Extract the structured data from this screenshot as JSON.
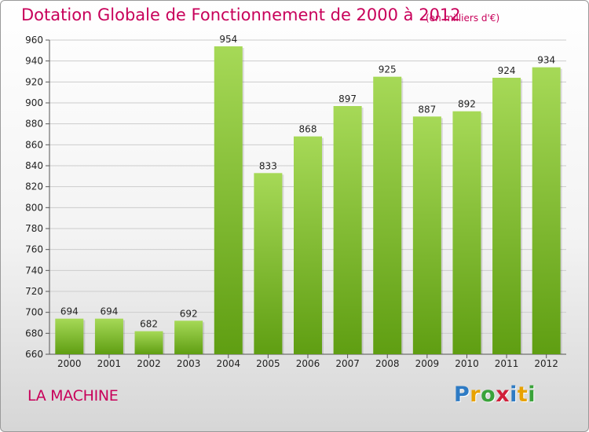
{
  "header": {
    "title": "Dotation Globale de Fonctionnement de 2000 à 2012",
    "unit": "(en milliers d'€)"
  },
  "footer": {
    "commune": "LA MACHINE",
    "logo_letters": [
      "P",
      "r",
      "o",
      "x",
      "i",
      "t",
      "i"
    ],
    "logo_colors": [
      "#2e7bc4",
      "#e8a200",
      "#3aa33a",
      "#d11f3a",
      "#2e7bc4",
      "#e8a200",
      "#3aa33a"
    ]
  },
  "colors": {
    "bar_light": "#a6d957",
    "bar_dark": "#5f9e12",
    "grid": "#cccccc",
    "title": "#c8005a"
  },
  "chart_data": {
    "type": "bar",
    "title": "Dotation Globale de Fonctionnement de 2000 à 2012",
    "subtitle": "(en milliers d'€)",
    "xlabel": "",
    "ylabel": "",
    "categories": [
      "2000",
      "2001",
      "2002",
      "2003",
      "2004",
      "2005",
      "2006",
      "2007",
      "2008",
      "2009",
      "2010",
      "2011",
      "2012"
    ],
    "values": [
      694,
      694,
      682,
      692,
      954,
      833,
      868,
      897,
      925,
      887,
      892,
      924,
      934
    ],
    "ylim": [
      660,
      960
    ],
    "yticks": [
      660,
      680,
      700,
      720,
      740,
      760,
      780,
      800,
      820,
      840,
      860,
      880,
      900,
      920,
      940,
      960
    ],
    "grid": true,
    "legend": "none"
  }
}
